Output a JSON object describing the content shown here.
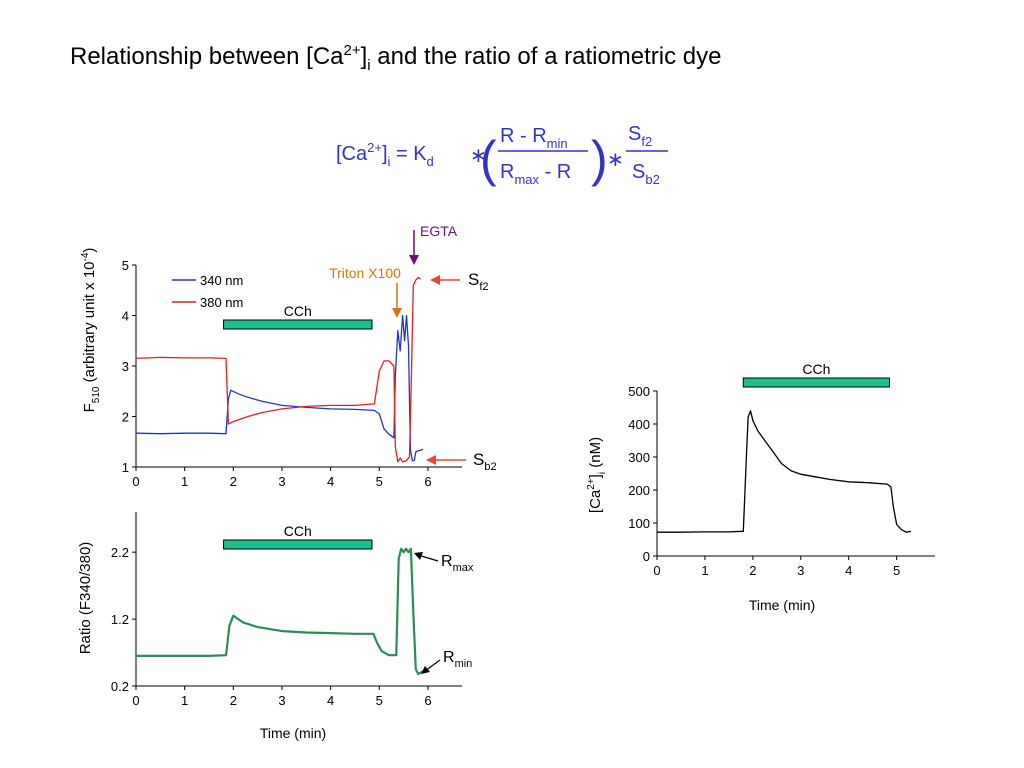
{
  "slide": {
    "title_main": "Relationship between [Ca",
    "title_sup": "2+",
    "title_bracket": "]",
    "title_sub": "i",
    "title_rest": " and the ratio of a ratiometric dye"
  },
  "equation": {
    "lhs_ca": "[Ca",
    "lhs_sup": "2+",
    "lhs_bracket": "]",
    "lhs_sub": "i",
    "equals_k": " = K",
    "k_sub": "d",
    "times": "∗",
    "open_paren": "(",
    "close_paren": ")",
    "num_r": "R - R",
    "num_sub": "min",
    "den_r": "R",
    "den_sub": "max",
    "den_rest": " - R",
    "sf_s": "S",
    "sf_sub": "f2",
    "sb_s": "S",
    "sb_sub": "b2",
    "color": "#3333cc"
  },
  "chart_data": [
    {
      "id": "fluorescence",
      "type": "line",
      "ylabel_main": "F",
      "ylabel_sub": "510",
      "ylabel_rest": " (arbitrary unit x 10",
      "ylabel_sup": "-4",
      "ylabel_end": ")",
      "xlim": [
        0,
        6.7
      ],
      "ylim": [
        1,
        5
      ],
      "xticks": [
        "0",
        "1",
        "2",
        "3",
        "4",
        "5",
        "6"
      ],
      "yticks": [
        "1",
        "2",
        "3",
        "4",
        "5"
      ],
      "legend": "top-left",
      "series": [
        {
          "name": "340 nm",
          "color": "#2233cc",
          "x": [
            0,
            0.5,
            1.0,
            1.5,
            1.85,
            1.9,
            1.95,
            2.1,
            2.3,
            2.6,
            3.0,
            3.5,
            4.0,
            4.5,
            4.9,
            5.0,
            5.1,
            5.2,
            5.3,
            5.33,
            5.38,
            5.43,
            5.48,
            5.52,
            5.56,
            5.6,
            5.64,
            5.68,
            5.72,
            5.75,
            5.8,
            5.85,
            5.9
          ],
          "values": [
            1.67,
            1.66,
            1.67,
            1.67,
            1.66,
            2.35,
            2.52,
            2.45,
            2.38,
            2.3,
            2.22,
            2.18,
            2.15,
            2.14,
            2.12,
            2.05,
            1.75,
            1.65,
            1.58,
            2.8,
            3.7,
            3.3,
            4.0,
            3.5,
            4.0,
            3.4,
            1.35,
            1.12,
            1.13,
            1.3,
            1.32,
            1.33,
            1.35
          ]
        },
        {
          "name": "380 nm",
          "color": "#dd2222",
          "x": [
            0,
            0.5,
            1.0,
            1.5,
            1.85,
            1.9,
            2.0,
            2.3,
            2.6,
            3.0,
            3.5,
            4.0,
            4.5,
            4.9,
            5.0,
            5.1,
            5.2,
            5.3,
            5.33,
            5.38,
            5.43,
            5.48,
            5.55,
            5.62,
            5.66,
            5.7,
            5.75,
            5.8,
            5.85
          ],
          "values": [
            3.15,
            3.17,
            3.16,
            3.16,
            3.15,
            1.85,
            1.9,
            2.0,
            2.08,
            2.15,
            2.2,
            2.22,
            2.22,
            2.25,
            2.9,
            3.1,
            3.1,
            3.0,
            1.4,
            1.1,
            1.18,
            1.1,
            1.12,
            1.2,
            2.8,
            4.6,
            4.7,
            4.75,
            4.72
          ]
        }
      ],
      "annotations": {
        "cch": "CCh",
        "cch_range": [
          1.8,
          4.85
        ],
        "triton": "Triton X100",
        "triton_x": 5.35,
        "triton_color": "#cc7711",
        "egta": "EGTA",
        "egta_x": 5.7,
        "egta_color": "#661177",
        "sf2_s": "S",
        "sf2_sub": "f2",
        "sb2_s": "S",
        "sb2_sub": "b2",
        "arrow_color": "#ee4433"
      }
    },
    {
      "id": "ratio",
      "type": "line",
      "xlabel": "Time (min)",
      "ylabel": "Ratio (F340/380)",
      "xlim": [
        0,
        6.7
      ],
      "ylim": [
        0.2,
        2.8
      ],
      "xticks": [
        "0",
        "1",
        "2",
        "3",
        "4",
        "5",
        "6"
      ],
      "yticks": [
        "0.2",
        "1.2",
        "2.2"
      ],
      "ytick_values": [
        0.2,
        1.2,
        2.2
      ],
      "series": [
        {
          "name": "",
          "color": "#2e8b57",
          "x": [
            0,
            0.5,
            1.0,
            1.5,
            1.85,
            1.92,
            2.0,
            2.2,
            2.5,
            3.0,
            3.5,
            4.0,
            4.5,
            4.88,
            4.95,
            5.05,
            5.2,
            5.35,
            5.4,
            5.45,
            5.5,
            5.55,
            5.6,
            5.65,
            5.7,
            5.75,
            5.8,
            5.85,
            5.9
          ],
          "values": [
            0.65,
            0.65,
            0.65,
            0.65,
            0.66,
            1.1,
            1.25,
            1.15,
            1.08,
            1.02,
            1.0,
            0.99,
            0.98,
            0.98,
            0.85,
            0.72,
            0.66,
            0.66,
            2.1,
            2.25,
            2.2,
            2.25,
            2.2,
            2.25,
            1.3,
            0.45,
            0.38,
            0.4,
            0.42
          ]
        }
      ],
      "annotations": {
        "cch": "CCh",
        "cch_range": [
          1.8,
          4.85
        ],
        "rmax_r": "R",
        "rmax_sub": "max",
        "rmin_r": "R",
        "rmin_sub": "min"
      }
    },
    {
      "id": "calcium",
      "type": "line",
      "xlabel": "Time (min)",
      "ylabel_main": "[Ca",
      "ylabel_sup": "2+",
      "ylabel_bracket": "]",
      "ylabel_sub": "i",
      "ylabel_rest": " (nM)",
      "xlim": [
        0,
        5.8
      ],
      "ylim": [
        0,
        500
      ],
      "xticks": [
        "0",
        "1",
        "2",
        "3",
        "4",
        "5"
      ],
      "yticks": [
        "0",
        "100",
        "200",
        "300",
        "400",
        "500"
      ],
      "series": [
        {
          "name": "",
          "color": "#000000",
          "x": [
            0,
            0.5,
            1.0,
            1.5,
            1.8,
            1.85,
            1.9,
            1.95,
            2.0,
            2.1,
            2.2,
            2.4,
            2.6,
            2.8,
            3.0,
            3.3,
            3.6,
            4.0,
            4.4,
            4.8,
            4.88,
            4.93,
            5.0,
            5.1,
            5.2,
            5.3
          ],
          "values": [
            72,
            72,
            73,
            73,
            75,
            250,
            420,
            440,
            410,
            380,
            360,
            320,
            280,
            258,
            248,
            240,
            232,
            225,
            222,
            218,
            210,
            150,
            95,
            80,
            72,
            75
          ]
        }
      ],
      "annotations": {
        "cch": "CCh",
        "cch_range": [
          1.8,
          4.85
        ]
      }
    }
  ]
}
